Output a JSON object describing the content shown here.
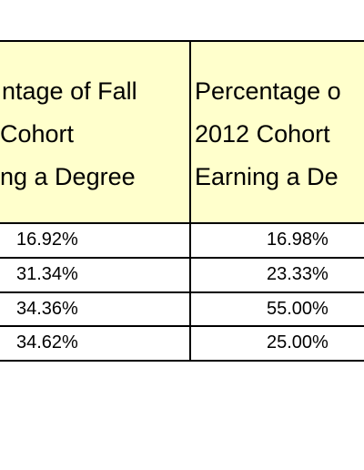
{
  "table": {
    "header": [
      {
        "lines": [
          "ntage of Fall",
          "Cohort",
          "ng a Degree"
        ]
      },
      {
        "lines": [
          "Percentage o",
          "2012 Cohort",
          "Earning a De"
        ]
      }
    ],
    "rows": [
      [
        "16.92%",
        "16.98%"
      ],
      [
        "31.34%",
        "23.33%"
      ],
      [
        "34.36%",
        "55.00%"
      ],
      [
        "34.62%",
        "25.00%"
      ]
    ]
  }
}
